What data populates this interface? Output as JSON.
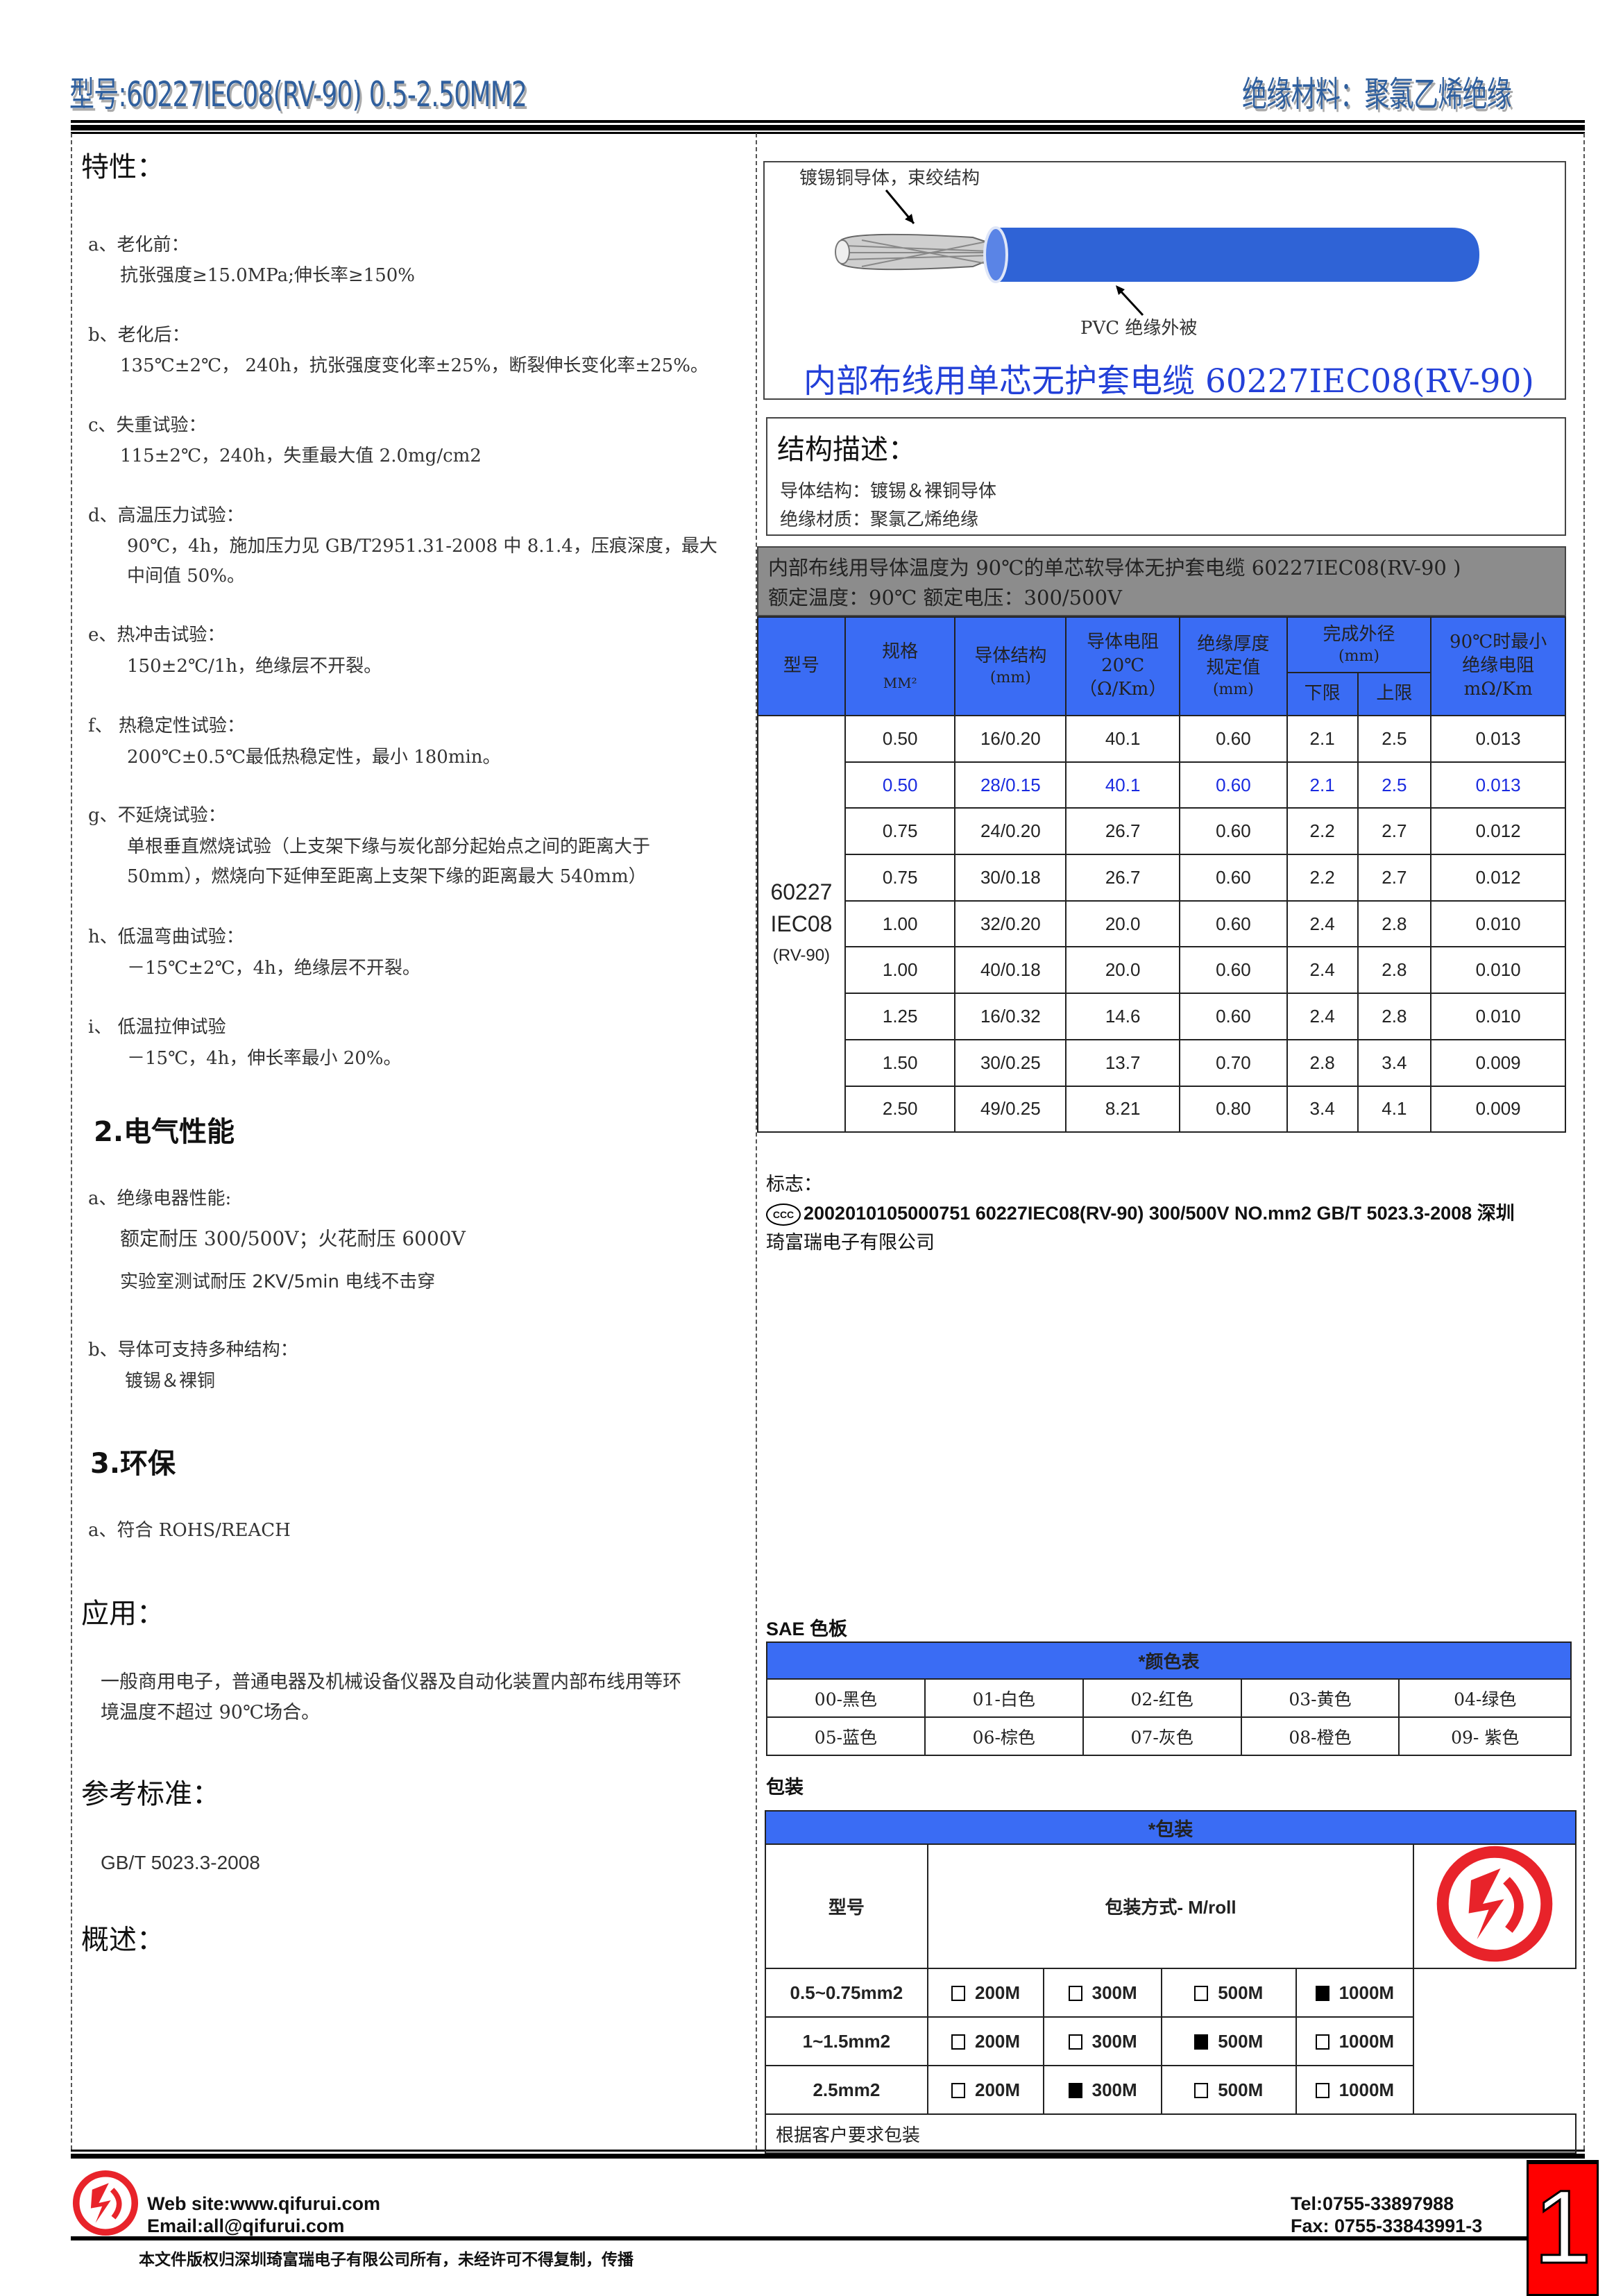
{
  "header": {
    "model": "型号:60227IEC08(RV-90) 0.5-2.50MM2",
    "material": "绝缘材料：聚氯乙烯绝缘"
  },
  "left": {
    "properties_title": "特性：",
    "items": [
      {
        "label": "a、老化前：",
        "lines": [
          "抗张强度≥15.0MPa;伸长率≥150%"
        ]
      },
      {
        "label": "b、老化后：",
        "lines": [
          "135℃±2℃， 240h，抗张强度变化率±25%，断裂伸长变化率±25%。"
        ]
      },
      {
        "label": "c、失重试验：",
        "lines": [
          "115±2℃，240h，失重最大值 2.0mg/cm2"
        ]
      },
      {
        "label": "d、高温压力试验：",
        "lines": [
          "90℃，4h，施加压力见 GB/T2951.31-2008 中 8.1.4，压痕深度，最大",
          "中间值 50%。"
        ]
      },
      {
        "label": "e、热冲击试验：",
        "lines": [
          "150±2℃/1h，绝缘层不开裂。"
        ]
      },
      {
        "label": "f、 热稳定性试验：",
        "lines": [
          "200℃±0.5℃最低热稳定性，最小 180min。"
        ]
      },
      {
        "label": "g、不延烧试验：",
        "lines": [
          "单根垂直燃烧试验（上支架下缘与炭化部分起始点之间的距离大于",
          "50mm），燃烧向下延伸至距离上支架下缘的距离最大 540mm）"
        ]
      },
      {
        "label": "h、低温弯曲试验：",
        "lines": [
          "－15℃±2℃，4h，绝缘层不开裂。"
        ]
      },
      {
        "label": "i、 低温拉伸试验",
        "lines": [
          "－15℃，4h，伸长率最小 20%。"
        ]
      }
    ],
    "electrical_title": "2.电气性能",
    "electrical": {
      "a_label": "a、绝缘电器性能:",
      "a_line1": "额定耐压 300/500V；火花耐压 6000V",
      "a_line2": "实验室测试耐压 2KV/5min 电线不击穿",
      "b_label": "b、导体可支持多种结构：",
      "b_line": "镀锡＆裸铜"
    },
    "env_title": "3.环保",
    "env_line": "a、符合 ROHS/REACH",
    "app_title": "应用：",
    "app_lines": [
      "一般商用电子，普通电器及机械设备仪器及自动化装置内部布线用等环",
      "境温度不超过 90℃场合。"
    ],
    "std_title": "参考标准：",
    "std_line": "GB/T 5023.3-2008",
    "overview_title": "概述："
  },
  "image": {
    "conductor_label": "镀锡铜导体，束绞结构",
    "jacket_label": "PVC 绝缘外被",
    "title": "内部布线用单芯无护套电缆 60227IEC08(RV-90)",
    "colors": {
      "jacket": "#2f63d6"
    }
  },
  "structure": {
    "title": "结构描述：",
    "conductor": "导体结构：镀锡＆裸铜导体",
    "insulation": "绝缘材质：聚氯乙烯绝缘"
  },
  "spec": {
    "banner1": "内部布线用导体温度为 90℃的单芯软导体无护套电缆 60227IEC08(RV-90 )",
    "banner2": "额定温度：90℃ 额定电压：300/500V",
    "headers": {
      "model": "型号",
      "size": "规格",
      "size_unit": "MM²",
      "cond": "导体结构",
      "cond_unit": "(mm)",
      "res": "导体电阻",
      "res2": "20℃",
      "res_unit": "（Ω/Km）",
      "ins": "绝缘厚度",
      "ins2": "规定值",
      "ins_unit": "(mm)",
      "od": "完成外径",
      "od_unit": "(mm)",
      "od_min": "下限",
      "od_max": "上限",
      "ir": "90℃时最小",
      "ir2": "绝缘电阻",
      "ir_unit": "mΩ/Km"
    },
    "model": [
      "60227",
      "IEC08",
      "(RV-90)"
    ],
    "rows": [
      [
        "0.50",
        "16/0.20",
        "40.1",
        "0.60",
        "2.1",
        "2.5",
        "0.013"
      ],
      [
        "0.50",
        "28/0.15",
        "40.1",
        "0.60",
        "2.1",
        "2.5",
        "0.013"
      ],
      [
        "0.75",
        "24/0.20",
        "26.7",
        "0.60",
        "2.2",
        "2.7",
        "0.012"
      ],
      [
        "0.75",
        "30/0.18",
        "26.7",
        "0.60",
        "2.2",
        "2.7",
        "0.012"
      ],
      [
        "1.00",
        "32/0.20",
        "20.0",
        "0.60",
        "2.4",
        "2.8",
        "0.010"
      ],
      [
        "1.00",
        "40/0.18",
        "20.0",
        "0.60",
        "2.4",
        "2.8",
        "0.010"
      ],
      [
        "1.25",
        "16/0.32",
        "14.6",
        "0.60",
        "2.4",
        "2.8",
        "0.010"
      ],
      [
        "1.50",
        "30/0.25",
        "13.7",
        "0.70",
        "2.8",
        "3.4",
        "0.009"
      ],
      [
        "2.50",
        "49/0.25",
        "8.21",
        "0.80",
        "3.4",
        "4.1",
        "0.009"
      ]
    ]
  },
  "marking": {
    "title": "标志：",
    "line1": "2002010105000751 60227IEC08(RV-90) 300/500V NO.mm2 GB/T 5023.3-2008 深圳",
    "line2": "琦富瑞电子有限公司",
    "ccc": "CCC"
  },
  "colors_table": {
    "title": "SAE 色板",
    "header": "*颜色表",
    "rows": [
      [
        "00-黑色",
        "01-白色",
        "02-红色",
        "03-黄色",
        "04-绿色"
      ],
      [
        "05-蓝色",
        "06-棕色",
        "07-灰色",
        "08-橙色",
        "09- 紫色"
      ]
    ]
  },
  "packaging": {
    "title": "包装",
    "header": "*包装",
    "col_model": "型号",
    "col_method": "包装方式- M/roll",
    "rows": [
      {
        "model": "0.5~0.75mm2",
        "options": [
          {
            "label": "200M",
            "checked": false
          },
          {
            "label": "300M",
            "checked": false
          },
          {
            "label": "500M",
            "checked": false
          },
          {
            "label": "1000M",
            "checked": true
          }
        ]
      },
      {
        "model": "1~1.5mm2",
        "options": [
          {
            "label": "200M",
            "checked": false
          },
          {
            "label": "300M",
            "checked": false
          },
          {
            "label": "500M",
            "checked": true
          },
          {
            "label": "1000M",
            "checked": false
          }
        ]
      },
      {
        "model": "2.5mm2",
        "options": [
          {
            "label": "200M",
            "checked": false
          },
          {
            "label": "300M",
            "checked": true
          },
          {
            "label": "500M",
            "checked": false
          },
          {
            "label": "1000M",
            "checked": false
          }
        ]
      }
    ],
    "note": "根据客户要求包装"
  },
  "footer": {
    "website": "Web site:www.qifurui.com",
    "email": "Email:all@qifurui.com",
    "tel": "Tel:0755-33897988",
    "fax": "Fax: 0755-33843991-3",
    "copyright": "本文件版权归深圳琦富瑞电子有限公司所有，未经许可不得复制，传播",
    "page": "1"
  },
  "brand": {
    "logo_color": "#e8232a",
    "header_blue": "#3a6cf4",
    "gray_banner": "#8c8c8c"
  }
}
